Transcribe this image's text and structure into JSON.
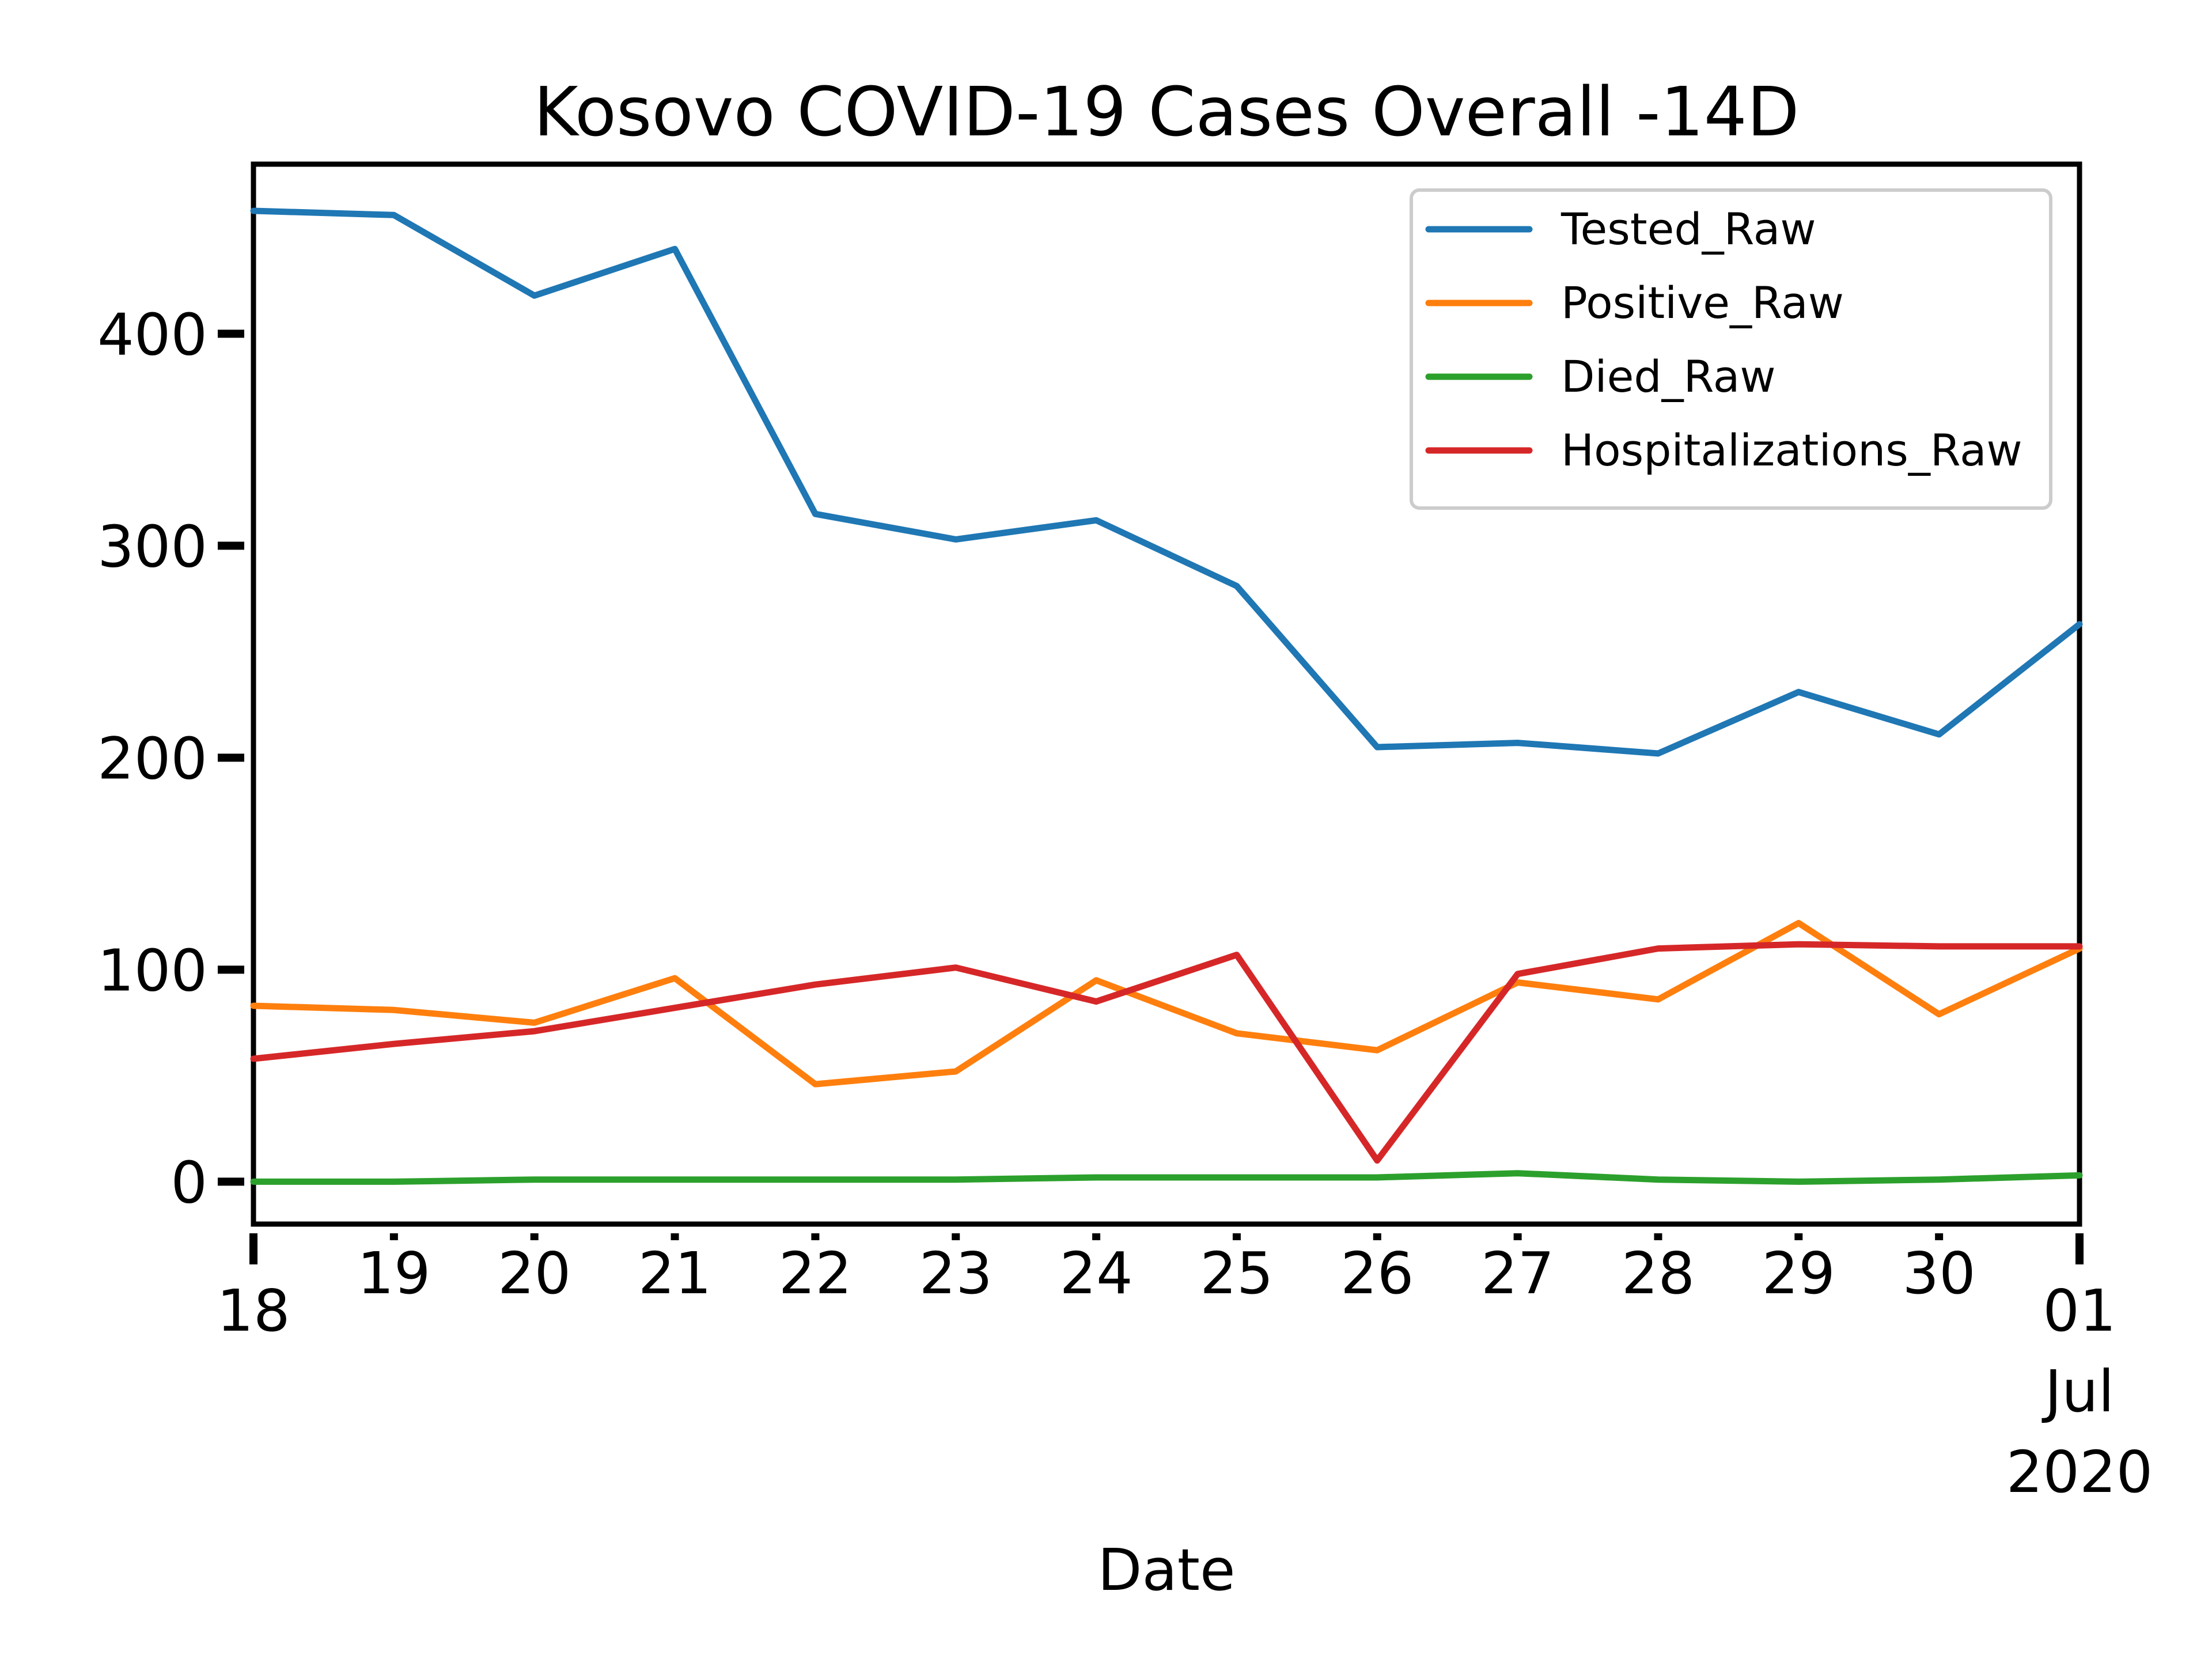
{
  "chart_data": {
    "type": "line",
    "title": "Kosovo COVID-19 Cases Overall -14D",
    "xlabel": "Date",
    "ylabel": "",
    "xlim": [
      "2020-06-18",
      "2020-07-01"
    ],
    "ylim": [
      -20,
      480
    ],
    "grid": false,
    "legend_position": "upper-right",
    "x_ticks": [
      {
        "date": "2020-06-18",
        "label": "18"
      },
      {
        "date": "2020-06-19",
        "label": "19"
      },
      {
        "date": "2020-06-20",
        "label": "20"
      },
      {
        "date": "2020-06-21",
        "label": "21"
      },
      {
        "date": "2020-06-22",
        "label": "22"
      },
      {
        "date": "2020-06-23",
        "label": "23"
      },
      {
        "date": "2020-06-24",
        "label": "24"
      },
      {
        "date": "2020-06-25",
        "label": "25"
      },
      {
        "date": "2020-06-26",
        "label": "26"
      },
      {
        "date": "2020-06-27",
        "label": "27"
      },
      {
        "date": "2020-06-28",
        "label": "28"
      },
      {
        "date": "2020-06-29",
        "label": "29"
      },
      {
        "date": "2020-06-30",
        "label": "30"
      },
      {
        "date": "2020-07-01",
        "label": "01",
        "sub1": "Jul",
        "sub2": "2020"
      }
    ],
    "y_ticks": [
      0,
      100,
      200,
      300,
      400
    ],
    "x": [
      "2020-06-18",
      "2020-06-19",
      "2020-06-20",
      "2020-06-21",
      "2020-06-22",
      "2020-06-23",
      "2020-06-24",
      "2020-06-25",
      "2020-06-26",
      "2020-06-27",
      "2020-06-28",
      "2020-06-29",
      "2020-06-30",
      "2020-07-01"
    ],
    "series": [
      {
        "name": "Tested_Raw",
        "color": "#1f77b4",
        "values": [
          458,
          456,
          418,
          440,
          315,
          303,
          312,
          281,
          205,
          207,
          202,
          231,
          211,
          263
        ]
      },
      {
        "name": "Positive_Raw",
        "color": "#ff7f0e",
        "values": [
          83,
          81,
          75,
          96,
          46,
          52,
          95,
          70,
          62,
          94,
          86,
          122,
          79,
          110
        ]
      },
      {
        "name": "Died_Raw",
        "color": "#2ca02c",
        "values": [
          0,
          0,
          1,
          1,
          1,
          1,
          2,
          2,
          2,
          4,
          1,
          0,
          1,
          3
        ]
      },
      {
        "name": "Hospitalizations_Raw",
        "color": "#d62728",
        "values": [
          58,
          65,
          71,
          82,
          93,
          101,
          85,
          107,
          10,
          98,
          110,
          112,
          111,
          111
        ]
      }
    ]
  }
}
